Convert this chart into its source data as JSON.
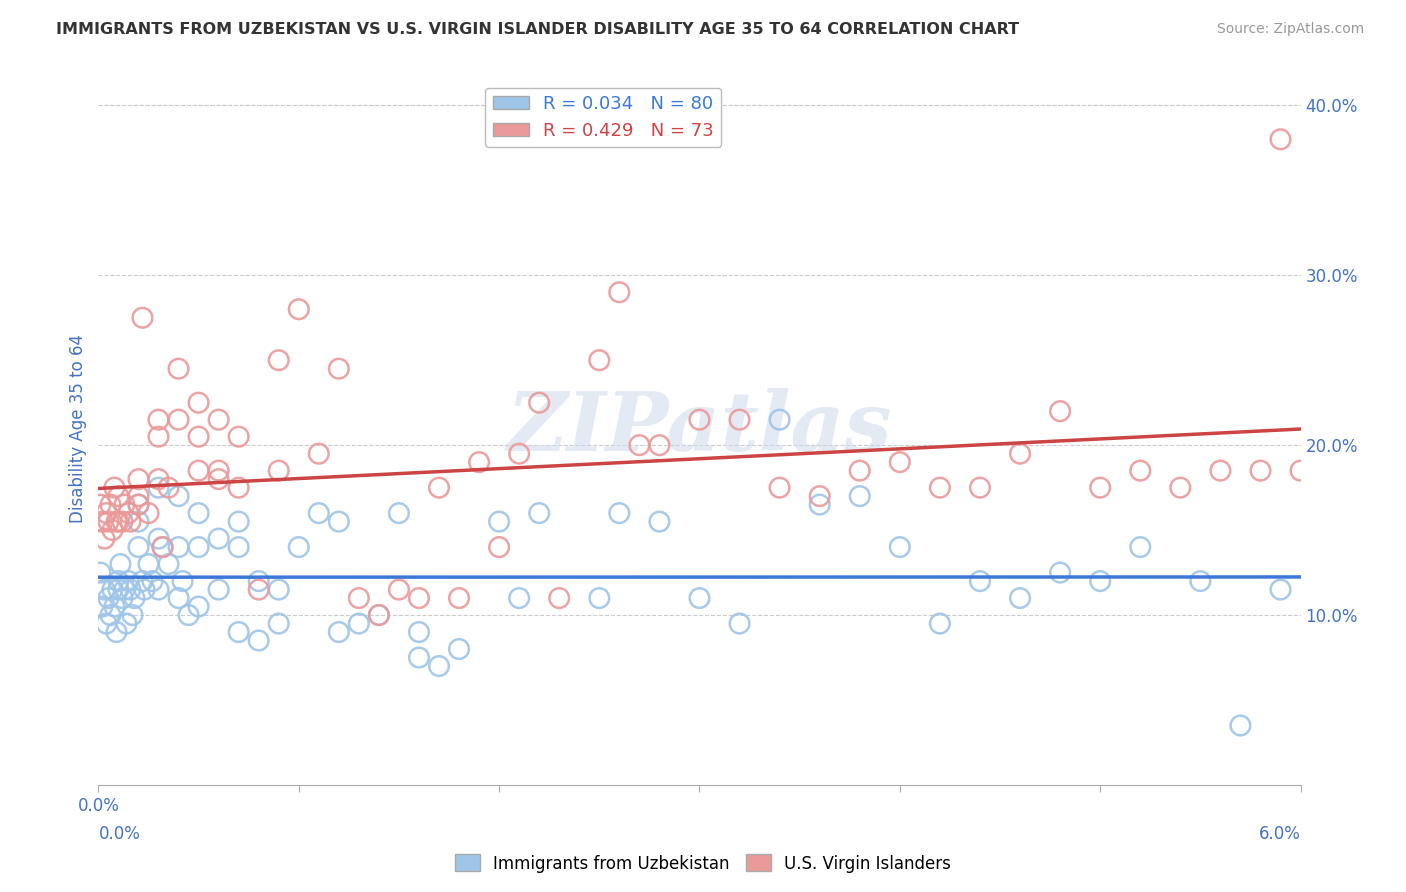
{
  "title": "IMMIGRANTS FROM UZBEKISTAN VS U.S. VIRGIN ISLANDER DISABILITY AGE 35 TO 64 CORRELATION CHART",
  "source": "Source: ZipAtlas.com",
  "ylabel": "Disability Age 35 to 64",
  "ylabel_right_ticks": [
    10.0,
    20.0,
    30.0,
    40.0
  ],
  "x_min": 0.0,
  "x_max": 0.06,
  "y_min": 0.0,
  "y_max": 0.42,
  "blue_color": "#9fc5e8",
  "pink_color": "#ea9999",
  "blue_line_color": "#3c78d8",
  "pink_line_color": "#cc4444",
  "watermark": "ZIPatlas",
  "legend_label_blue": "Immigrants from Uzbekistan",
  "legend_label_pink": "U.S. Virgin Islanders",
  "blue_R": 0.034,
  "blue_N": 80,
  "pink_R": 0.429,
  "pink_N": 73,
  "blue_scatter_x": [
    0.0001,
    0.0002,
    0.0003,
    0.0004,
    0.0005,
    0.0006,
    0.0007,
    0.0008,
    0.0009,
    0.001,
    0.001,
    0.0011,
    0.0012,
    0.0013,
    0.0014,
    0.0015,
    0.0016,
    0.0017,
    0.0018,
    0.002,
    0.002,
    0.002,
    0.0022,
    0.0023,
    0.0025,
    0.0027,
    0.003,
    0.003,
    0.003,
    0.0032,
    0.0035,
    0.004,
    0.004,
    0.004,
    0.0042,
    0.0045,
    0.005,
    0.005,
    0.005,
    0.006,
    0.006,
    0.007,
    0.007,
    0.007,
    0.008,
    0.008,
    0.009,
    0.009,
    0.01,
    0.011,
    0.012,
    0.012,
    0.013,
    0.014,
    0.015,
    0.016,
    0.016,
    0.017,
    0.018,
    0.02,
    0.021,
    0.022,
    0.025,
    0.026,
    0.028,
    0.03,
    0.032,
    0.034,
    0.036,
    0.038,
    0.04,
    0.042,
    0.044,
    0.046,
    0.048,
    0.05,
    0.052,
    0.055,
    0.057,
    0.059
  ],
  "blue_scatter_y": [
    0.125,
    0.105,
    0.115,
    0.095,
    0.11,
    0.1,
    0.115,
    0.105,
    0.09,
    0.12,
    0.115,
    0.13,
    0.11,
    0.115,
    0.095,
    0.12,
    0.115,
    0.1,
    0.11,
    0.165,
    0.155,
    0.14,
    0.12,
    0.115,
    0.13,
    0.12,
    0.175,
    0.145,
    0.115,
    0.14,
    0.13,
    0.17,
    0.14,
    0.11,
    0.12,
    0.1,
    0.16,
    0.14,
    0.105,
    0.145,
    0.115,
    0.155,
    0.14,
    0.09,
    0.12,
    0.085,
    0.115,
    0.095,
    0.14,
    0.16,
    0.155,
    0.09,
    0.095,
    0.1,
    0.16,
    0.09,
    0.075,
    0.07,
    0.08,
    0.155,
    0.11,
    0.16,
    0.11,
    0.16,
    0.155,
    0.11,
    0.095,
    0.215,
    0.165,
    0.17,
    0.14,
    0.095,
    0.12,
    0.11,
    0.125,
    0.12,
    0.14,
    0.12,
    0.035,
    0.115
  ],
  "pink_scatter_x": [
    0.0001,
    0.0002,
    0.0003,
    0.0004,
    0.0005,
    0.0006,
    0.0007,
    0.0008,
    0.0009,
    0.001,
    0.001,
    0.0012,
    0.0013,
    0.0015,
    0.0016,
    0.002,
    0.002,
    0.002,
    0.0022,
    0.0025,
    0.003,
    0.003,
    0.003,
    0.0032,
    0.0035,
    0.004,
    0.004,
    0.005,
    0.005,
    0.005,
    0.006,
    0.006,
    0.007,
    0.007,
    0.008,
    0.009,
    0.009,
    0.01,
    0.011,
    0.012,
    0.013,
    0.014,
    0.015,
    0.016,
    0.017,
    0.018,
    0.019,
    0.02,
    0.021,
    0.022,
    0.023,
    0.025,
    0.026,
    0.027,
    0.028,
    0.03,
    0.032,
    0.034,
    0.036,
    0.038,
    0.04,
    0.042,
    0.044,
    0.046,
    0.048,
    0.05,
    0.052,
    0.054,
    0.056,
    0.058,
    0.059,
    0.06,
    0.006
  ],
  "pink_scatter_y": [
    0.165,
    0.155,
    0.145,
    0.16,
    0.155,
    0.165,
    0.15,
    0.175,
    0.155,
    0.17,
    0.155,
    0.155,
    0.165,
    0.16,
    0.155,
    0.18,
    0.165,
    0.17,
    0.275,
    0.16,
    0.215,
    0.205,
    0.18,
    0.14,
    0.175,
    0.245,
    0.215,
    0.225,
    0.205,
    0.185,
    0.215,
    0.185,
    0.205,
    0.175,
    0.115,
    0.25,
    0.185,
    0.28,
    0.195,
    0.245,
    0.11,
    0.1,
    0.115,
    0.11,
    0.175,
    0.11,
    0.19,
    0.14,
    0.195,
    0.225,
    0.11,
    0.25,
    0.29,
    0.2,
    0.2,
    0.215,
    0.215,
    0.175,
    0.17,
    0.185,
    0.19,
    0.175,
    0.175,
    0.195,
    0.22,
    0.175,
    0.185,
    0.175,
    0.185,
    0.185,
    0.38,
    0.185,
    0.18
  ]
}
